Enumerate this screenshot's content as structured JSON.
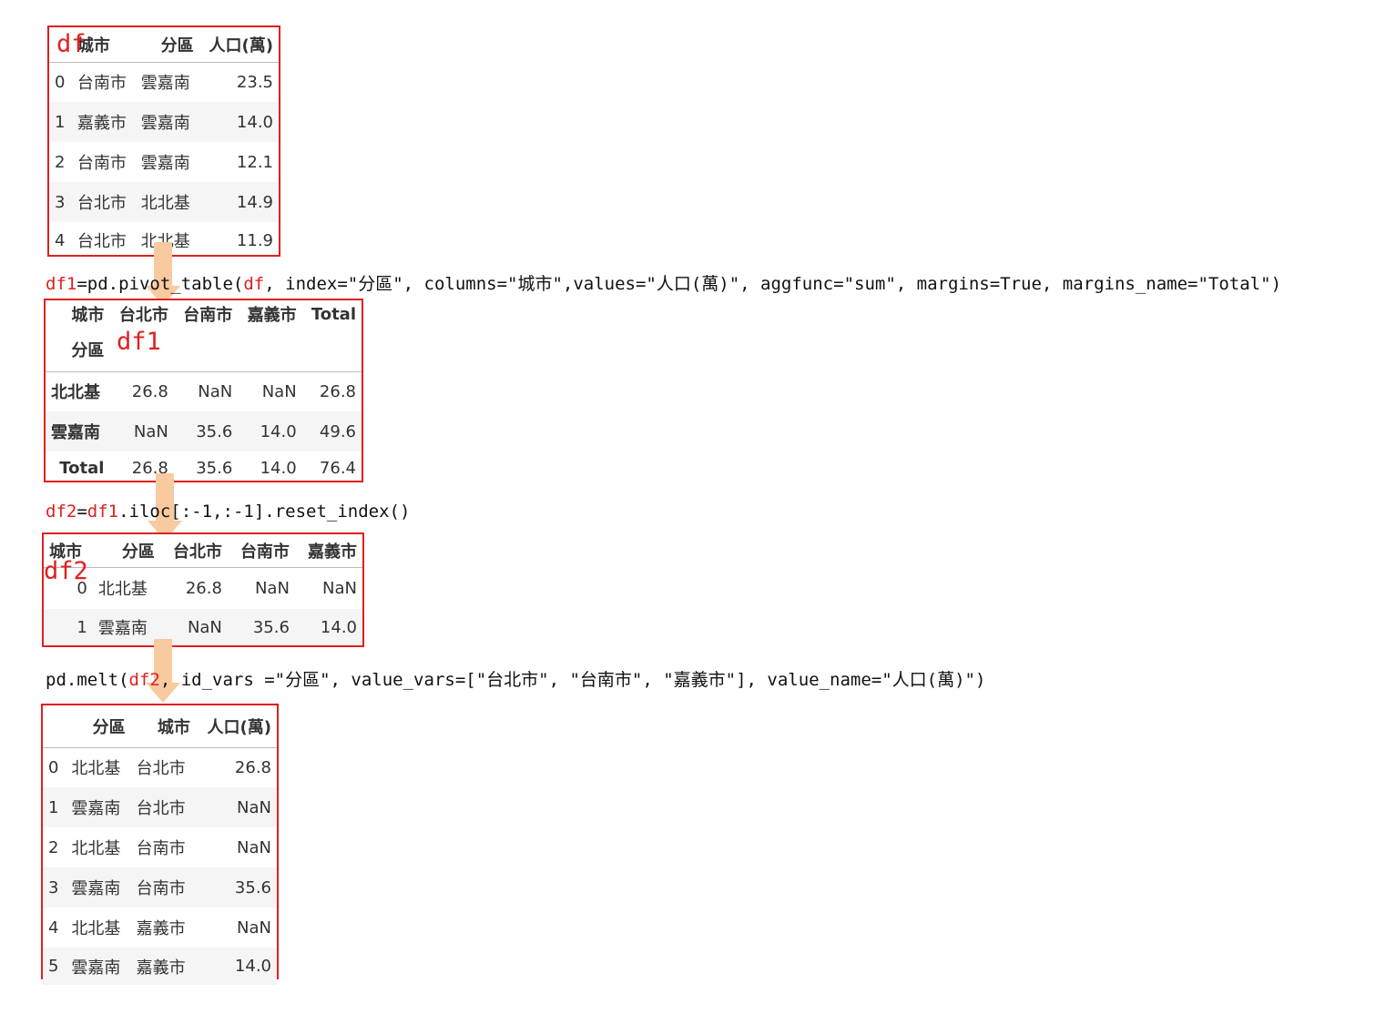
{
  "colors": {
    "frame": "#e02020",
    "arrow": "#f9c9a0",
    "stripe": "#f5f5f5"
  },
  "df": {
    "tag": "df",
    "columns": [
      "城市",
      "分區",
      "人口(萬)"
    ],
    "rows": [
      [
        "0",
        "台南市",
        "雲嘉南",
        "23.5"
      ],
      [
        "1",
        "嘉義市",
        "雲嘉南",
        "14.0"
      ],
      [
        "2",
        "台南市",
        "雲嘉南",
        "12.1"
      ],
      [
        "3",
        "台北市",
        "北北基",
        "14.9"
      ],
      [
        "4",
        "台北市",
        "北北基",
        "11.9"
      ]
    ]
  },
  "code1": {
    "var": "df1",
    "pre": "=pd.pivot_table(",
    "arg": "df",
    "post": ", index=\"分區\", columns=\"城市\",values=\"人口(萬)\", aggfunc=\"sum\", margins=True, margins_name=\"Total\")"
  },
  "df1": {
    "tag": "df1",
    "columns_name": "城市",
    "index_name": "分區",
    "columns": [
      "台北市",
      "台南市",
      "嘉義市",
      "Total"
    ],
    "rows": [
      [
        "北北基",
        "26.8",
        "NaN",
        "NaN",
        "26.8"
      ],
      [
        "雲嘉南",
        "NaN",
        "35.6",
        "14.0",
        "49.6"
      ],
      [
        "Total",
        "26.8",
        "35.6",
        "14.0",
        "76.4"
      ]
    ]
  },
  "code2": {
    "var": "df2",
    "eq": "=",
    "arg": "df1",
    "post": ".iloc[:-1,:-1].reset_index()"
  },
  "df2": {
    "tag": "df2",
    "columns_name": "城市",
    "columns": [
      "分區",
      "台北市",
      "台南市",
      "嘉義市"
    ],
    "rows": [
      [
        "0",
        "北北基",
        "26.8",
        "NaN",
        "NaN"
      ],
      [
        "1",
        "雲嘉南",
        "NaN",
        "35.6",
        "14.0"
      ]
    ]
  },
  "code3": {
    "pre": "pd.melt(",
    "arg": "df2",
    "post": ", id_vars =\"分區\", value_vars=[\"台北市\", \"台南市\", \"嘉義市\"], value_name=\"人口(萬)\")"
  },
  "df3": {
    "columns": [
      "分區",
      "城市",
      "人口(萬)"
    ],
    "rows": [
      [
        "0",
        "北北基",
        "台北市",
        "26.8"
      ],
      [
        "1",
        "雲嘉南",
        "台北市",
        "NaN"
      ],
      [
        "2",
        "北北基",
        "台南市",
        "NaN"
      ],
      [
        "3",
        "雲嘉南",
        "台南市",
        "35.6"
      ],
      [
        "4",
        "北北基",
        "嘉義市",
        "NaN"
      ],
      [
        "5",
        "雲嘉南",
        "嘉義市",
        "14.0"
      ]
    ]
  }
}
